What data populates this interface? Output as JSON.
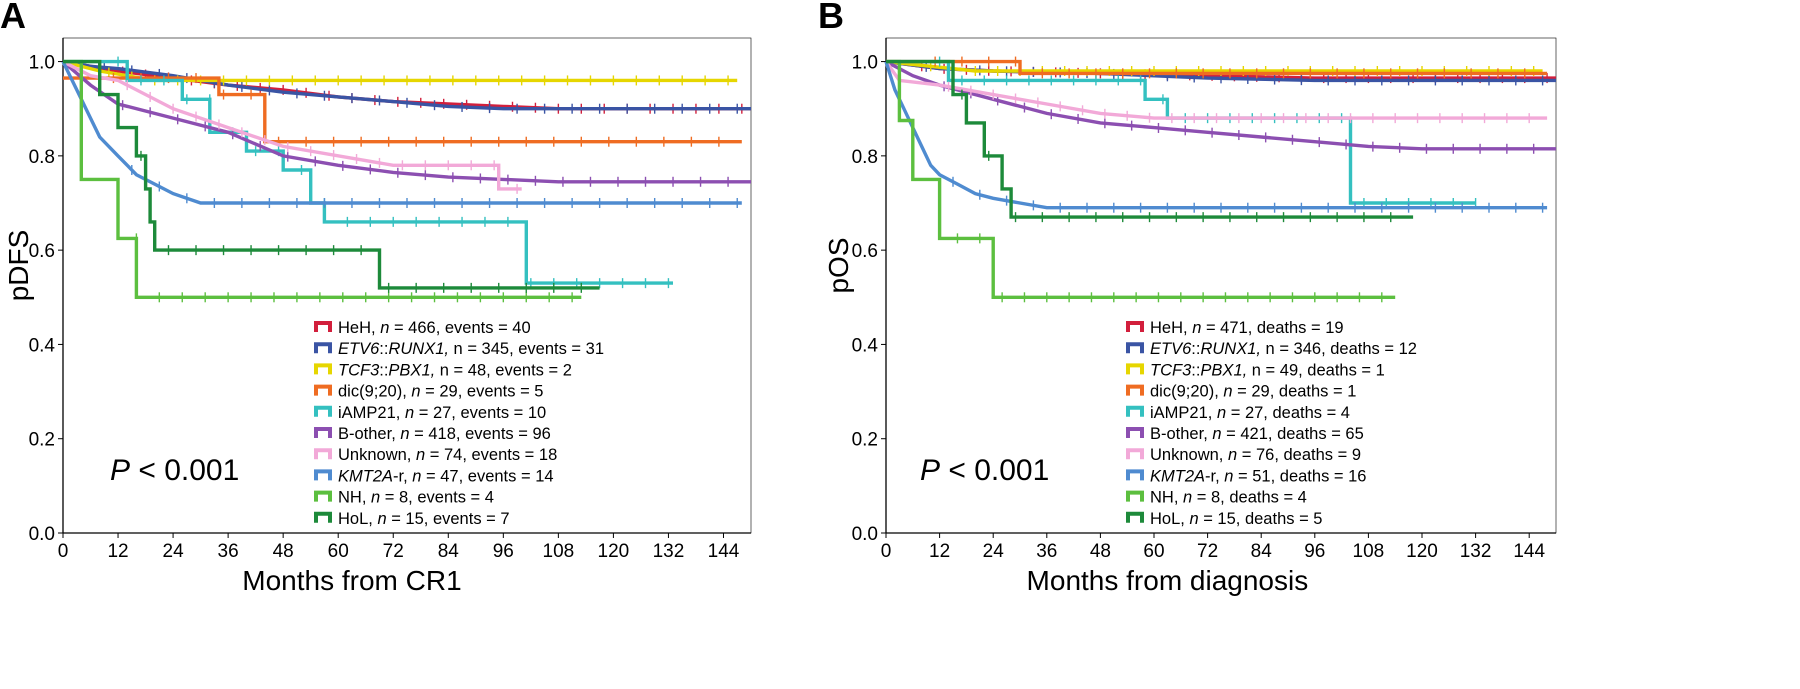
{
  "chart_data": [
    {
      "panel_label": "A",
      "type": "line",
      "xlabel": "Months from CR1",
      "ylabel": "pDFS",
      "xlim": [
        0,
        150
      ],
      "ylim": [
        0,
        1.05
      ],
      "xticks": [
        0,
        12,
        24,
        36,
        48,
        60,
        72,
        84,
        96,
        108,
        120,
        132,
        144
      ],
      "yticks": [
        0.0,
        0.2,
        0.4,
        0.6,
        0.8,
        1.0
      ],
      "annotation": {
        "italic": "P",
        "rest": " < 0.001"
      },
      "legend_position": "lower-right",
      "series": [
        {
          "label_pre": "HeH, ",
          "label_italic": "n",
          "label_post": " = 466, events = 40",
          "color": "#d21f3c",
          "points": [
            [
              0,
              1.0
            ],
            [
              6,
              0.99
            ],
            [
              12,
              0.98
            ],
            [
              24,
              0.965
            ],
            [
              36,
              0.95
            ],
            [
              48,
              0.94
            ],
            [
              60,
              0.925
            ],
            [
              72,
              0.915
            ],
            [
              84,
              0.91
            ],
            [
              96,
              0.905
            ],
            [
              108,
              0.9
            ],
            [
              150,
              0.9
            ]
          ]
        },
        {
          "label_pre": "",
          "label_italic": "ETV6",
          "label_post": "::",
          "label_italic2": "RUNX1,",
          "label_post2": " n = 345, events = 31",
          "color": "#3a54a4",
          "points": [
            [
              0,
              1.0
            ],
            [
              6,
              0.99
            ],
            [
              12,
              0.985
            ],
            [
              24,
              0.97
            ],
            [
              36,
              0.95
            ],
            [
              48,
              0.935
            ],
            [
              60,
              0.925
            ],
            [
              72,
              0.915
            ],
            [
              84,
              0.905
            ],
            [
              96,
              0.9
            ],
            [
              108,
              0.9
            ],
            [
              150,
              0.9
            ]
          ]
        },
        {
          "label_pre": "",
          "label_italic": "TCF3",
          "label_post": "::",
          "label_italic2": "PBX1,",
          "label_post2": " n = 48, events = 2",
          "color": "#e6d600",
          "points": [
            [
              0,
              1.0
            ],
            [
              8,
              0.98
            ],
            [
              20,
              0.96
            ],
            [
              147,
              0.96
            ]
          ]
        },
        {
          "label_pre": "dic(9;20), ",
          "label_italic": "n",
          "label_post": " = 29, events = 5",
          "color": "#ef6c22",
          "points": [
            [
              0,
              0.965
            ],
            [
              24,
              0.965
            ],
            [
              34,
              0.965
            ],
            [
              34,
              0.93
            ],
            [
              44,
              0.93
            ],
            [
              44,
              0.83
            ],
            [
              148,
              0.83
            ]
          ]
        },
        {
          "label_pre": "iAMP21, ",
          "label_italic": "n",
          "label_post": " = 27, events = 10",
          "color": "#34c0c0",
          "points": [
            [
              0,
              1.0
            ],
            [
              14,
              1.0
            ],
            [
              14,
              0.96
            ],
            [
              26,
              0.96
            ],
            [
              26,
              0.92
            ],
            [
              32,
              0.92
            ],
            [
              32,
              0.85
            ],
            [
              40,
              0.85
            ],
            [
              40,
              0.81
            ],
            [
              48,
              0.81
            ],
            [
              48,
              0.77
            ],
            [
              54,
              0.77
            ],
            [
              54,
              0.7
            ],
            [
              57,
              0.7
            ],
            [
              57,
              0.66
            ],
            [
              101,
              0.66
            ],
            [
              101,
              0.53
            ],
            [
              133,
              0.53
            ]
          ]
        },
        {
          "label_pre": "B-other, ",
          "label_italic": "n",
          "label_post": " = 418, events = 96",
          "color": "#8c4fb1",
          "points": [
            [
              0,
              1.0
            ],
            [
              6,
              0.95
            ],
            [
              12,
              0.91
            ],
            [
              24,
              0.88
            ],
            [
              36,
              0.85
            ],
            [
              48,
              0.8
            ],
            [
              60,
              0.78
            ],
            [
              72,
              0.765
            ],
            [
              84,
              0.755
            ],
            [
              96,
              0.75
            ],
            [
              108,
              0.745
            ],
            [
              150,
              0.745
            ]
          ]
        },
        {
          "label_pre": "Unknown, ",
          "label_italic": "n",
          "label_post": " = 74, events = 18",
          "color": "#f2a9d8",
          "points": [
            [
              0,
              1.0
            ],
            [
              6,
              0.97
            ],
            [
              12,
              0.96
            ],
            [
              24,
              0.9
            ],
            [
              36,
              0.86
            ],
            [
              48,
              0.82
            ],
            [
              72,
              0.78
            ],
            [
              95,
              0.78
            ],
            [
              95,
              0.73
            ],
            [
              100,
              0.73
            ]
          ]
        },
        {
          "label_pre": "",
          "label_italic": "KMT2A",
          "label_post": "-r, ",
          "label_italic2": "n",
          "label_post2": " = 47, events = 14",
          "color": "#4f8bd0",
          "points": [
            [
              0,
              1.0
            ],
            [
              3,
              0.94
            ],
            [
              6,
              0.88
            ],
            [
              8,
              0.84
            ],
            [
              12,
              0.8
            ],
            [
              16,
              0.76
            ],
            [
              20,
              0.74
            ],
            [
              24,
              0.72
            ],
            [
              30,
              0.7
            ],
            [
              148,
              0.7
            ]
          ]
        },
        {
          "label_pre": "NH, ",
          "label_italic": "n",
          "label_post": " = 8, events = 4",
          "color": "#5cbf3f",
          "points": [
            [
              0,
              1.0
            ],
            [
              4,
              1.0
            ],
            [
              4,
              0.75
            ],
            [
              12,
              0.75
            ],
            [
              12,
              0.625
            ],
            [
              16,
              0.625
            ],
            [
              16,
              0.5
            ],
            [
              113,
              0.5
            ]
          ]
        },
        {
          "label_pre": "HoL, ",
          "label_italic": "n",
          "label_post": " = 15, events = 7",
          "color": "#1d8a3a",
          "points": [
            [
              0,
              1.0
            ],
            [
              8,
              1.0
            ],
            [
              8,
              0.93
            ],
            [
              12,
              0.93
            ],
            [
              12,
              0.86
            ],
            [
              16,
              0.86
            ],
            [
              16,
              0.8
            ],
            [
              18,
              0.8
            ],
            [
              18,
              0.73
            ],
            [
              19,
              0.73
            ],
            [
              19,
              0.66
            ],
            [
              20,
              0.66
            ],
            [
              20,
              0.6
            ],
            [
              69,
              0.6
            ],
            [
              69,
              0.52
            ],
            [
              117,
              0.52
            ]
          ]
        }
      ]
    },
    {
      "panel_label": "B",
      "type": "line",
      "xlabel": "Months from diagnosis",
      "ylabel": "pOS",
      "xlim": [
        0,
        150
      ],
      "ylim": [
        0,
        1.05
      ],
      "xticks": [
        0,
        12,
        24,
        36,
        48,
        60,
        72,
        84,
        96,
        108,
        120,
        132,
        144
      ],
      "yticks": [
        0.0,
        0.2,
        0.4,
        0.6,
        0.8,
        1.0
      ],
      "annotation": {
        "italic": "P",
        "rest": " < 0.001"
      },
      "legend_position": "lower-right",
      "series": [
        {
          "label_pre": "HeH, ",
          "label_italic": "n",
          "label_post": " = 471, deaths = 19",
          "color": "#d21f3c",
          "points": [
            [
              0,
              1.0
            ],
            [
              12,
              0.985
            ],
            [
              24,
              0.98
            ],
            [
              48,
              0.975
            ],
            [
              72,
              0.97
            ],
            [
              96,
              0.965
            ],
            [
              150,
              0.965
            ]
          ]
        },
        {
          "label_pre": "",
          "label_italic": "ETV6",
          "label_post": "::",
          "label_italic2": "RUNX1,",
          "label_post2": " n = 346, deaths = 12",
          "color": "#3a54a4",
          "points": [
            [
              0,
              1.0
            ],
            [
              12,
              0.985
            ],
            [
              24,
              0.98
            ],
            [
              48,
              0.975
            ],
            [
              72,
              0.965
            ],
            [
              96,
              0.96
            ],
            [
              150,
              0.96
            ]
          ]
        },
        {
          "label_pre": "",
          "label_italic": "TCF3",
          "label_post": "::",
          "label_italic2": "PBX1,",
          "label_post2": " n = 49, deaths = 1",
          "color": "#e6d600",
          "points": [
            [
              0,
              1.0
            ],
            [
              20,
              0.98
            ],
            [
              147,
              0.98
            ]
          ]
        },
        {
          "label_pre": "dic(9;20), ",
          "label_italic": "n",
          "label_post": " = 29, deaths = 1",
          "color": "#ef6c22",
          "points": [
            [
              0,
              1.0
            ],
            [
              30,
              1.0
            ],
            [
              30,
              0.975
            ],
            [
              148,
              0.975
            ]
          ]
        },
        {
          "label_pre": "iAMP21, ",
          "label_italic": "n",
          "label_post": " = 27, deaths = 4",
          "color": "#34c0c0",
          "points": [
            [
              0,
              1.0
            ],
            [
              14,
              1.0
            ],
            [
              14,
              0.96
            ],
            [
              58,
              0.96
            ],
            [
              58,
              0.92
            ],
            [
              63,
              0.92
            ],
            [
              63,
              0.88
            ],
            [
              104,
              0.88
            ],
            [
              104,
              0.7
            ],
            [
              132,
              0.7
            ]
          ]
        },
        {
          "label_pre": "B-other, ",
          "label_italic": "n",
          "label_post": " = 421, deaths = 65",
          "color": "#8c4fb1",
          "points": [
            [
              0,
              1.0
            ],
            [
              6,
              0.97
            ],
            [
              12,
              0.95
            ],
            [
              24,
              0.92
            ],
            [
              36,
              0.89
            ],
            [
              48,
              0.87
            ],
            [
              60,
              0.86
            ],
            [
              72,
              0.85
            ],
            [
              84,
              0.84
            ],
            [
              96,
              0.83
            ],
            [
              108,
              0.82
            ],
            [
              120,
              0.815
            ],
            [
              150,
              0.815
            ]
          ]
        },
        {
          "label_pre": "Unknown, ",
          "label_italic": "n",
          "label_post": " = 76, deaths = 9",
          "color": "#f2a9d8",
          "points": [
            [
              0,
              1.0
            ],
            [
              3,
              0.96
            ],
            [
              12,
              0.95
            ],
            [
              24,
              0.93
            ],
            [
              36,
              0.91
            ],
            [
              48,
              0.89
            ],
            [
              60,
              0.88
            ],
            [
              148,
              0.88
            ]
          ]
        },
        {
          "label_pre": "",
          "label_italic": "KMT2A",
          "label_post": "-r, ",
          "label_italic2": "n",
          "label_post2": " = 51, deaths = 16",
          "color": "#4f8bd0",
          "points": [
            [
              0,
              1.0
            ],
            [
              2,
              0.94
            ],
            [
              4,
              0.9
            ],
            [
              6,
              0.86
            ],
            [
              8,
              0.82
            ],
            [
              10,
              0.78
            ],
            [
              12,
              0.76
            ],
            [
              16,
              0.74
            ],
            [
              20,
              0.72
            ],
            [
              24,
              0.71
            ],
            [
              36,
              0.69
            ],
            [
              148,
              0.69
            ]
          ]
        },
        {
          "label_pre": "NH, ",
          "label_italic": "n",
          "label_post": " = 8, deaths = 4",
          "color": "#5cbf3f",
          "points": [
            [
              0,
              1.0
            ],
            [
              3,
              1.0
            ],
            [
              3,
              0.875
            ],
            [
              6,
              0.875
            ],
            [
              6,
              0.75
            ],
            [
              12,
              0.75
            ],
            [
              12,
              0.625
            ],
            [
              24,
              0.625
            ],
            [
              24,
              0.5
            ],
            [
              114,
              0.5
            ]
          ]
        },
        {
          "label_pre": "HoL, ",
          "label_italic": "n",
          "label_post": " = 15, deaths = 5",
          "color": "#1d8a3a",
          "points": [
            [
              0,
              1.0
            ],
            [
              15,
              1.0
            ],
            [
              15,
              0.93
            ],
            [
              18,
              0.93
            ],
            [
              18,
              0.87
            ],
            [
              22,
              0.87
            ],
            [
              22,
              0.8
            ],
            [
              26,
              0.8
            ],
            [
              26,
              0.73
            ],
            [
              28,
              0.73
            ],
            [
              28,
              0.67
            ],
            [
              118,
              0.67
            ]
          ]
        }
      ]
    }
  ]
}
